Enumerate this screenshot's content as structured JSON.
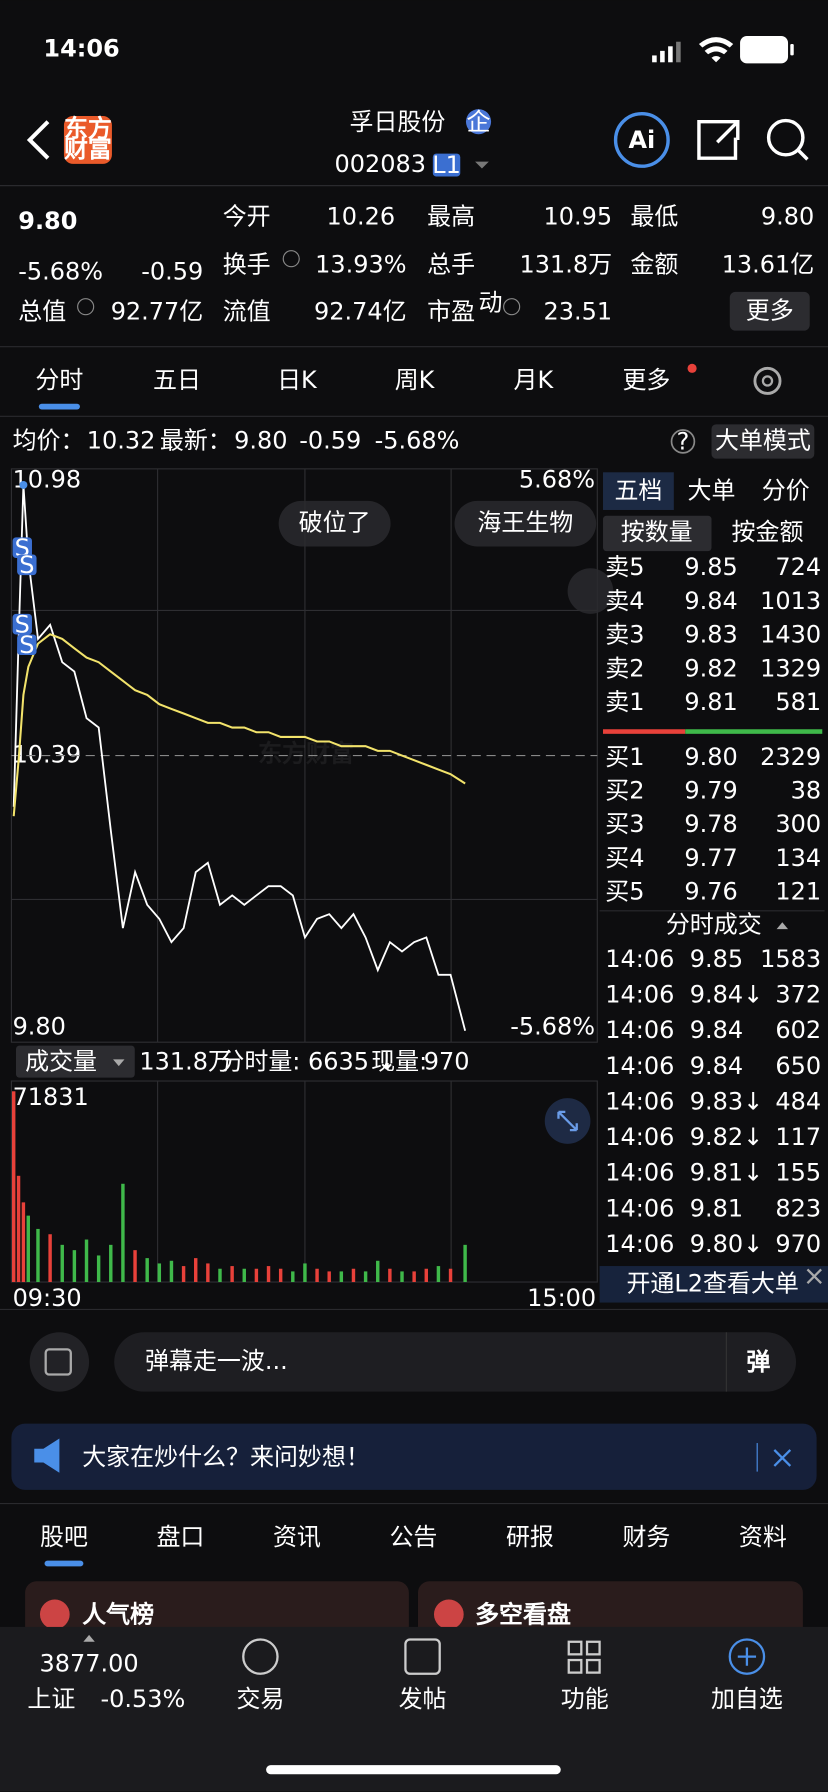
{
  "status": {
    "time": "14:06",
    "battery": "70"
  },
  "header": {
    "logo": [
      "东方",
      "财富"
    ],
    "title": "孚日股份",
    "badge": "企",
    "code": "002083",
    "level": "L1",
    "ai": "Ai"
  },
  "quote": {
    "price": "9.80",
    "change_pct": "-5.68%",
    "change": "-0.59",
    "color": "#4fc25a",
    "fields": [
      {
        "label": "今开",
        "value": "10.26",
        "color": "#4fc25a"
      },
      {
        "label": "最高",
        "value": "10.95",
        "color": "#e8413a"
      },
      {
        "label": "最低",
        "value": "9.80",
        "color": "#4fc25a"
      },
      {
        "label": "换手",
        "value": "13.93%",
        "color": "#ffffff"
      },
      {
        "label": "总手",
        "value": "131.8万",
        "color": "#ffffff"
      },
      {
        "label": "金额",
        "value": "13.61亿",
        "color": "#ffffff"
      },
      {
        "label": "总值",
        "value": "92.77亿",
        "color": "#ffffff"
      },
      {
        "label": "流值",
        "value": "92.74亿",
        "color": "#ffffff"
      },
      {
        "label": "市盈",
        "value": "23.51",
        "color": "#ffffff"
      }
    ],
    "pe_sup": "动",
    "more": "更多"
  },
  "tabs": [
    "分时",
    "五日",
    "日K",
    "周K",
    "月K",
    "更多"
  ],
  "info": {
    "avg_label": "均价：",
    "avg": "10.32",
    "latest_label": "最新：",
    "latest": "9.80",
    "change": "-0.59",
    "pct": "-5.68%",
    "help": "?",
    "mode": "大单模式"
  },
  "chart_data": [
    {
      "type": "line",
      "watermark": "东方财富",
      "annotations": [
        "破位了",
        "海王生物"
      ],
      "signals": [
        "S",
        "S",
        "S",
        "S"
      ],
      "x": [
        0,
        2,
        4,
        6,
        10,
        15,
        20,
        25,
        30,
        35,
        40,
        45,
        50,
        55,
        60,
        65,
        70,
        75,
        80,
        85,
        90,
        95,
        100,
        105,
        110,
        115,
        120,
        125,
        130,
        135,
        140,
        145,
        150,
        155,
        160,
        165,
        170,
        175,
        180,
        186
      ],
      "series": [
        {
          "color": "#ffffff",
          "values": [
            10.28,
            10.64,
            10.97,
            10.81,
            10.64,
            10.67,
            10.59,
            10.57,
            10.47,
            10.45,
            10.23,
            10.02,
            10.14,
            10.07,
            10.04,
            9.99,
            10.02,
            10.14,
            10.16,
            10.07,
            10.09,
            10.07,
            10.09,
            10.11,
            10.11,
            10.09,
            10.0,
            10.04,
            10.05,
            10.02,
            10.05,
            10.0,
            9.93,
            9.99,
            9.97,
            9.99,
            10.0,
            9.92,
            9.92,
            9.8
          ]
        },
        {
          "color": "#f2e36b",
          "values": [
            10.26,
            10.38,
            10.52,
            10.58,
            10.63,
            10.65,
            10.64,
            10.62,
            10.6,
            10.59,
            10.57,
            10.55,
            10.53,
            10.52,
            10.5,
            10.49,
            10.48,
            10.47,
            10.46,
            10.46,
            10.45,
            10.45,
            10.44,
            10.44,
            10.43,
            10.43,
            10.43,
            10.42,
            10.42,
            10.41,
            10.41,
            10.41,
            10.4,
            10.4,
            10.39,
            10.38,
            10.37,
            10.36,
            10.35,
            10.33
          ]
        }
      ],
      "xlim": [
        0,
        240
      ],
      "ylim": [
        9.8,
        10.98
      ],
      "yticks": [
        {
          "value": 10.98,
          "label": "10.98"
        },
        {
          "value": 10.39,
          "label": "10.39"
        },
        {
          "value": 9.8,
          "label": "9.80"
        }
      ],
      "y2lim": [
        -5.68,
        5.68
      ],
      "y2ticks": [
        {
          "value": 5.68,
          "label": "5.68%"
        },
        {
          "value": -5.68,
          "label": "-5.68%"
        }
      ]
    },
    {
      "type": "bar",
      "title": "成交量",
      "total": "131.8万",
      "minute_label": "分时量: 6635 ↓",
      "current_label": "现量:",
      "current": "970",
      "up_color": "#e8413a",
      "down_color": "#3fb94a",
      "x": [
        0,
        2,
        4,
        6,
        10,
        15,
        20,
        25,
        30,
        35,
        40,
        45,
        50,
        55,
        60,
        65,
        70,
        75,
        80,
        85,
        90,
        95,
        100,
        105,
        110,
        115,
        120,
        125,
        130,
        135,
        140,
        145,
        150,
        155,
        160,
        165,
        170,
        175,
        180,
        186
      ],
      "values": [
        71831,
        40000,
        30000,
        25000,
        20000,
        18000,
        14000,
        12000,
        16000,
        10000,
        14000,
        37000,
        12000,
        9000,
        7000,
        8000,
        6000,
        9000,
        7000,
        5000,
        6000,
        5000,
        5000,
        6000,
        5000,
        4000,
        7000,
        5000,
        4000,
        4000,
        5000,
        4000,
        8000,
        5000,
        4000,
        4000,
        5000,
        6000,
        5000,
        14000
      ],
      "xlim": [
        0,
        240
      ],
      "ylim": [
        0,
        71831
      ],
      "yticks": [
        71831
      ],
      "xticks": [
        {
          "value": 0,
          "label": "09:30"
        },
        {
          "value": 240,
          "label": "15:00"
        }
      ]
    }
  ],
  "order_book": {
    "tabs": [
      "五档",
      "大单",
      "分价"
    ],
    "modes": [
      "按数量",
      "按金额"
    ],
    "asks": [
      {
        "label": "卖5",
        "price": "9.85",
        "vol": "724"
      },
      {
        "label": "卖4",
        "price": "9.84",
        "vol": "1013"
      },
      {
        "label": "卖3",
        "price": "9.83",
        "vol": "1430"
      },
      {
        "label": "卖2",
        "price": "9.82",
        "vol": "1329"
      },
      {
        "label": "卖1",
        "price": "9.81",
        "vol": "581"
      }
    ],
    "bids": [
      {
        "label": "买1",
        "price": "9.80",
        "vol": "2329"
      },
      {
        "label": "买2",
        "price": "9.79",
        "vol": "38"
      },
      {
        "label": "买3",
        "price": "9.78",
        "vol": "300"
      },
      {
        "label": "买4",
        "price": "9.77",
        "vol": "134"
      },
      {
        "label": "买5",
        "price": "9.76",
        "vol": "121"
      }
    ],
    "trades_title": "分时成交",
    "trades": [
      {
        "time": "14:06",
        "price": "9.85",
        "vol": "1583",
        "color": "#4fc25a"
      },
      {
        "time": "14:06",
        "price": "9.84↓",
        "vol": "372",
        "color": "#4fc25a"
      },
      {
        "time": "14:06",
        "price": "9.84",
        "vol": "602",
        "color": "#4fc25a"
      },
      {
        "time": "14:06",
        "price": "9.84",
        "vol": "650",
        "color": "#e8413a"
      },
      {
        "time": "14:06",
        "price": "9.83↓",
        "vol": "484",
        "color": "#4fc25a"
      },
      {
        "time": "14:06",
        "price": "9.82↓",
        "vol": "117",
        "color": "#4fc25a"
      },
      {
        "time": "14:06",
        "price": "9.81↓",
        "vol": "155",
        "color": "#4fc25a"
      },
      {
        "time": "14:06",
        "price": "9.81",
        "vol": "823",
        "color": "#4fc25a"
      },
      {
        "time": "14:06",
        "price": "9.80↓",
        "vol": "970",
        "color": "#4fc25a"
      }
    ],
    "l2": "开通L2查看大单"
  },
  "danmaku": {
    "placeholder": "弹幕走一波...",
    "button": "弹"
  },
  "banner": "大家在炒什么？来问妙想！",
  "sections": [
    "股吧",
    "盘口",
    "资讯",
    "公告",
    "研报",
    "财务",
    "资料"
  ],
  "cards": [
    "人气榜",
    "多空看盘"
  ],
  "nav": {
    "index_value": "3877.00",
    "index_name": "上证",
    "index_change": "-0.53%",
    "items": [
      "交易",
      "发帖",
      "功能",
      "加自选"
    ]
  }
}
